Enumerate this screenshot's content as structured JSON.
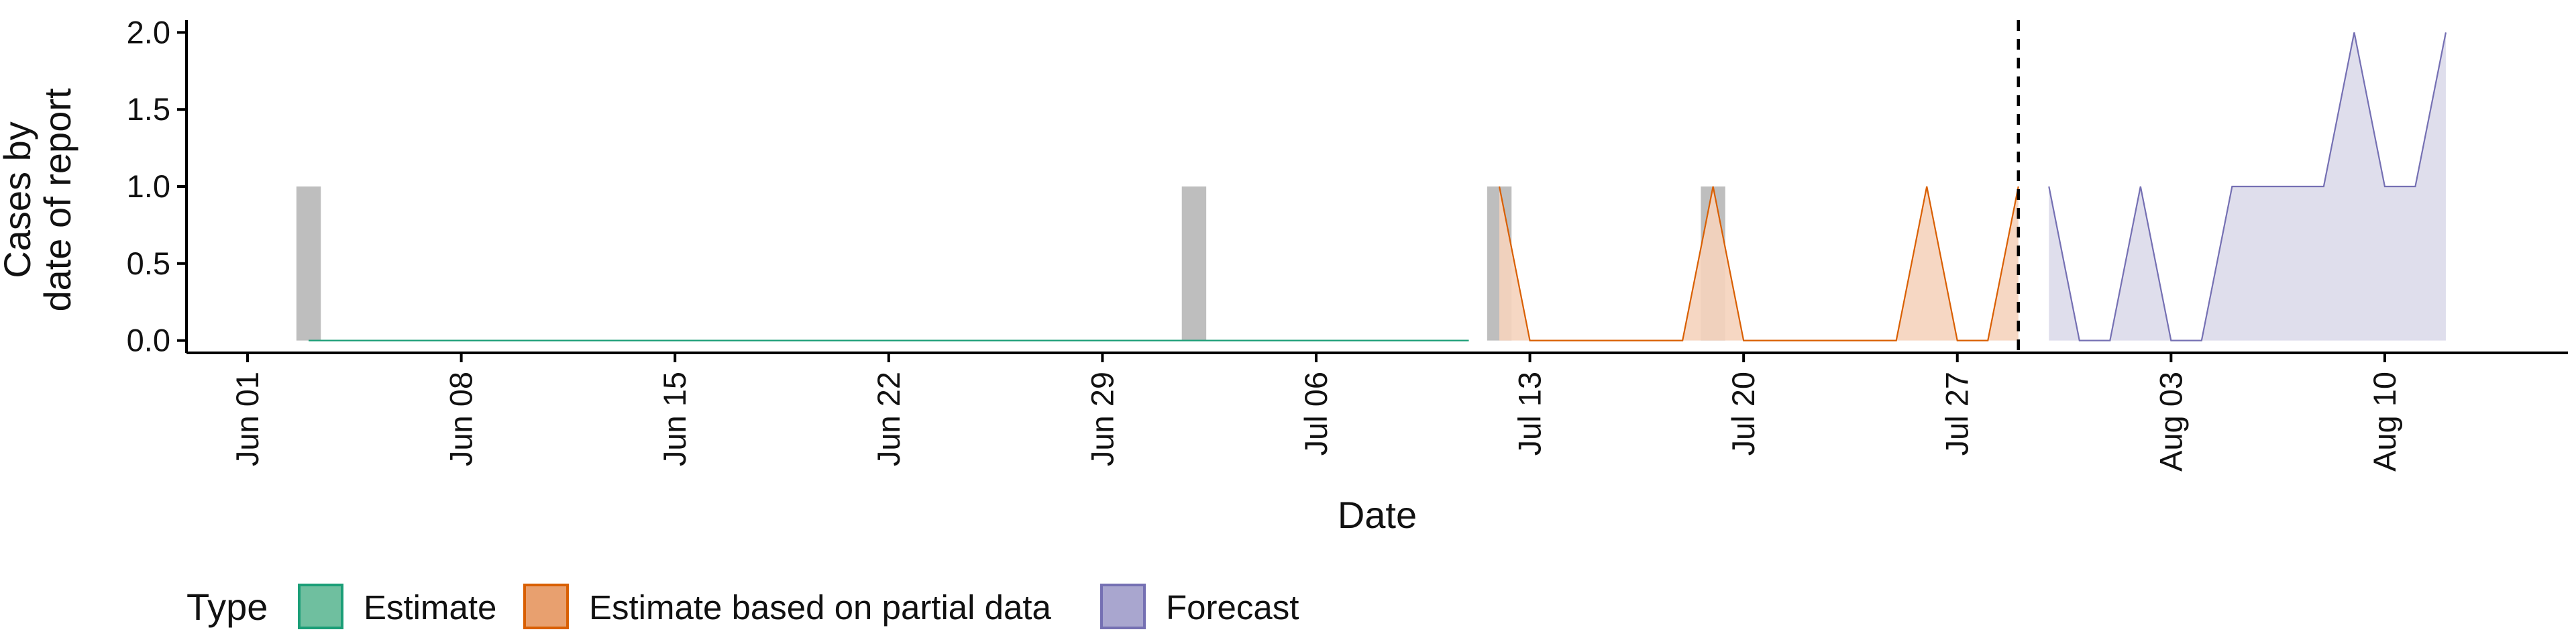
{
  "chart_data": {
    "type": "area",
    "xlabel": "Date",
    "ylabel_lines": [
      "Cases by",
      "date of report"
    ],
    "x_ticks": [
      "2020-06-01",
      "2020-06-08",
      "2020-06-15",
      "2020-06-22",
      "2020-06-29",
      "2020-07-06",
      "2020-07-13",
      "2020-07-20",
      "2020-07-27",
      "2020-08-03",
      "2020-08-10"
    ],
    "x_tick_labels": [
      "Jun 01",
      "Jun 08",
      "Jun 15",
      "Jun 22",
      "Jun 29",
      "Jul 06",
      "Jul 13",
      "Jul 20",
      "Jul 27",
      "Aug 03",
      "Aug 10"
    ],
    "xlim": [
      "2020-05-30",
      "2020-08-16"
    ],
    "y_ticks": [
      0.0,
      0.5,
      1.0,
      1.5,
      2.0
    ],
    "y_tick_labels": [
      "0.0",
      "0.5",
      "1.0",
      "1.5",
      "2.0"
    ],
    "ylim": [
      -0.08,
      2.08
    ],
    "forecast_start_line": "2020-07-29",
    "observed_bars": [
      {
        "date": "2020-06-03",
        "value": 1
      },
      {
        "date": "2020-07-02",
        "value": 1
      },
      {
        "date": "2020-07-12",
        "value": 1
      },
      {
        "date": "2020-07-19",
        "value": 1
      }
    ],
    "legend_title": "Type",
    "legend_position": "bottom",
    "series": [
      {
        "name": "Estimate",
        "fill": "#7CC7A8",
        "stroke": "#1B9E77",
        "x": [
          "2020-06-03",
          "2020-07-11"
        ],
        "y": [
          0,
          0
        ]
      },
      {
        "name": "Estimate based on partial data",
        "fill": "#F5D3BC",
        "stroke": "#D95F02",
        "x": [
          "2020-07-12",
          "2020-07-13",
          "2020-07-14",
          "2020-07-15",
          "2020-07-16",
          "2020-07-17",
          "2020-07-18",
          "2020-07-19",
          "2020-07-20",
          "2020-07-21",
          "2020-07-22",
          "2020-07-23",
          "2020-07-24",
          "2020-07-25",
          "2020-07-26",
          "2020-07-27",
          "2020-07-28",
          "2020-07-29"
        ],
        "y": [
          1,
          0,
          0,
          0,
          0,
          0,
          0,
          1,
          0,
          0,
          0,
          0,
          0,
          0,
          1,
          0,
          0,
          1
        ]
      },
      {
        "name": "Forecast",
        "fill": "#DCDAEA",
        "stroke": "#7570B3",
        "x": [
          "2020-07-30",
          "2020-07-31",
          "2020-08-01",
          "2020-08-02",
          "2020-08-03",
          "2020-08-04",
          "2020-08-05",
          "2020-08-06",
          "2020-08-07",
          "2020-08-08",
          "2020-08-09",
          "2020-08-10",
          "2020-08-11",
          "2020-08-12"
        ],
        "y": [
          1,
          0,
          0,
          1,
          0,
          0,
          1,
          1,
          1,
          1,
          2,
          1,
          1,
          2
        ]
      }
    ],
    "colors": {
      "observed_bar": "#BEBEBE",
      "axis": "#000000",
      "legend_estimate_fill": "#6FBF9F",
      "legend_partial_fill": "#E8A06F",
      "legend_forecast_fill": "#A9A6CF"
    }
  }
}
